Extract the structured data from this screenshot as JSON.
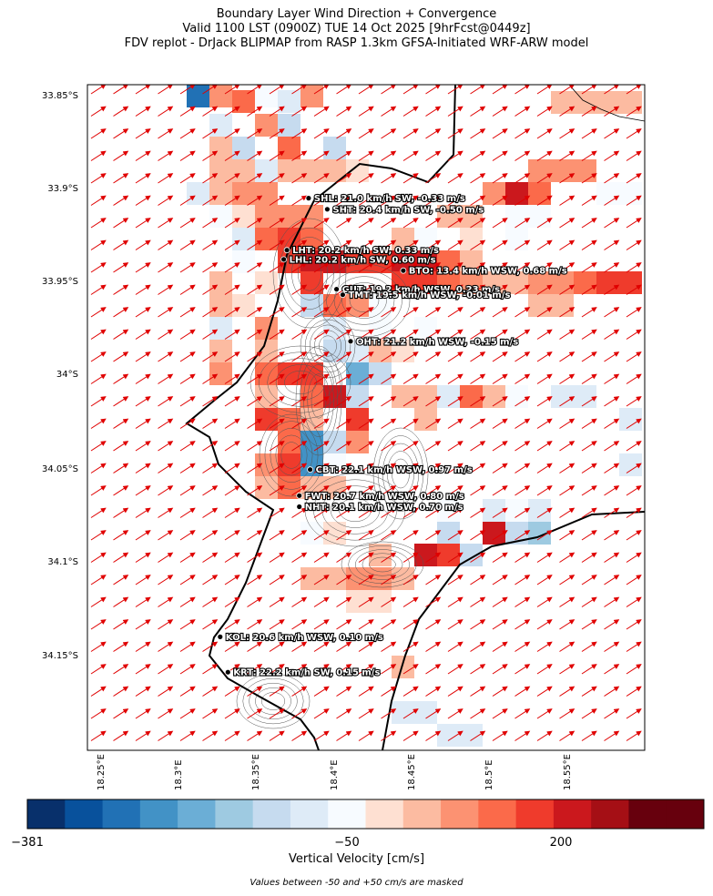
{
  "title": {
    "line1": "Boundary Layer Wind Direction + Convergence",
    "line2": "Valid 1100 LST (0900Z) TUE 14 Oct 2025 [9hrFcst@0449z]",
    "line3": "FDV replot - DrJack BLIPMAP from RASP 1.3km GFSA-Initiated WRF-ARW model"
  },
  "axes": {
    "lat_ticks": [
      "33.85°S",
      "33.9°S",
      "33.95°S",
      "34°S",
      "34.05°S",
      "34.1°S",
      "34.15°S"
    ],
    "lat_values": [
      -33.85,
      -33.9,
      -33.95,
      -34.0,
      -34.05,
      -34.1,
      -34.15
    ],
    "lon_ticks": [
      "18.25°E",
      "18.3°E",
      "18.35°E",
      "18.4°E",
      "18.45°E",
      "18.5°E",
      "18.55°E"
    ],
    "lon_values": [
      18.25,
      18.3,
      18.35,
      18.4,
      18.45,
      18.5,
      18.55
    ],
    "lat_range": [
      -34.203,
      -33.845
    ],
    "lon_range": [
      18.2305,
      18.5895
    ]
  },
  "stations": [
    {
      "code": "SHL",
      "label": "SHL: 21.0 km/h SW, -0.33 m/s",
      "lon": 18.373,
      "lat": -33.906
    },
    {
      "code": "SHT",
      "label": "SHT: 20.4 km/h SW, -0.50 m/s",
      "lon": 18.385,
      "lat": -33.912
    },
    {
      "code": "LHT",
      "label": "LHT: 20.2 km/h SW, 0.33 m/s",
      "lon": 18.359,
      "lat": -33.934
    },
    {
      "code": "LHL",
      "label": "LHL: 20.2 km/h SW, 0.60 m/s",
      "lon": 18.357,
      "lat": -33.939
    },
    {
      "code": "BTO",
      "label": "BTO: 13.4 km/h WSW, 0.68 m/s",
      "lon": 18.434,
      "lat": -33.945
    },
    {
      "code": "GUT",
      "label": "GUT: 19.2 km/h WSW, 0.23 m/s",
      "lon": 18.391,
      "lat": -33.955
    },
    {
      "code": "TMT",
      "label": "TMT: 19.5 km/h WSW, -0.01 m/s",
      "lon": 18.395,
      "lat": -33.958
    },
    {
      "code": "OHT",
      "label": "OHT: 21.2 km/h WSW, -0.15 m/s",
      "lon": 18.4,
      "lat": -33.983
    },
    {
      "code": "CBT",
      "label": "CBT: 22.1 km/h WSW, 0.97 m/s",
      "lon": 18.374,
      "lat": -34.052
    },
    {
      "code": "FWT",
      "label": "FWT: 20.7 km/h WSW, 0.80 m/s",
      "lon": 18.367,
      "lat": -34.066
    },
    {
      "code": "NHT",
      "label": "NHT: 20.1 km/h WSW, 0.70 m/s",
      "lon": 18.367,
      "lat": -34.072
    },
    {
      "code": "KOL",
      "label": "KOL: 20.6 km/h WSW, 0.10 m/s",
      "lon": 18.316,
      "lat": -34.142
    },
    {
      "code": "KRT",
      "label": "KRT: 22.2 km/h SW, 0.15 m/s",
      "lon": 18.321,
      "lat": -34.161
    }
  ],
  "wind": {
    "color": "#e00000",
    "direction": "SW / WSW"
  },
  "colorbar": {
    "label": "Vertical Velocity [cm/s]",
    "tick_labels": [
      "−381",
      "−50",
      "200"
    ],
    "tick_values": [
      -381,
      -50,
      200
    ],
    "colors": [
      "#08306b",
      "#08519c",
      "#2171b5",
      "#4292c6",
      "#6baed6",
      "#9ecae1",
      "#c6dbef",
      "#deebf7",
      "#f7fbff",
      "#fee0d2",
      "#fcbba1",
      "#fc9272",
      "#fb6a4a",
      "#ef3b2c",
      "#cb181d",
      "#a50f15",
      "#67000d",
      "#67000d"
    ]
  },
  "note": "Values between -50 and +50 cm/s are masked"
}
